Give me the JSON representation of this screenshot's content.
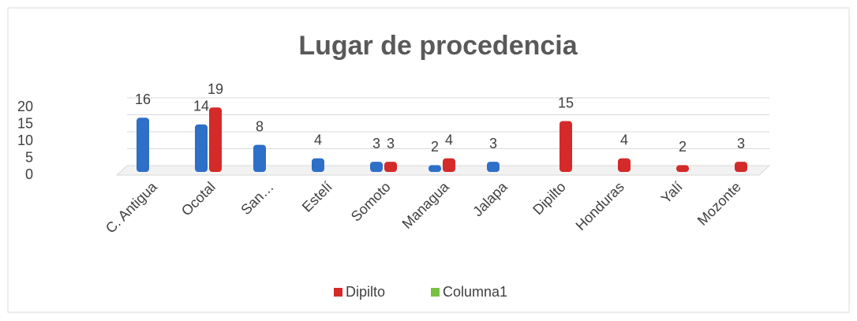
{
  "chart_data": {
    "type": "bar",
    "title": "Lugar de procedencia",
    "categories": [
      "C. Antigua",
      "Ocotal",
      "San…",
      "Estelí",
      "Somoto",
      "Managua",
      "Jalapa",
      "Dipilto",
      "Honduras",
      "Yalí",
      "Mozonte"
    ],
    "series": [
      {
        "color": "#2e6fc8",
        "values": [
          16,
          14,
          8,
          4,
          3,
          2,
          3,
          null,
          null,
          null,
          null
        ]
      },
      {
        "name": "Dipilto",
        "color": "#d42a2a",
        "values": [
          null,
          19,
          null,
          null,
          3,
          4,
          null,
          15,
          4,
          2,
          3
        ]
      },
      {
        "name": "Columna1",
        "color": "#7ac143",
        "values": [
          null,
          null,
          null,
          null,
          null,
          null,
          null,
          null,
          null,
          null,
          null
        ]
      }
    ],
    "ylim": [
      0,
      20
    ],
    "yticks": [
      0,
      5,
      10,
      15,
      20
    ],
    "grid": true,
    "legend": "bottom"
  }
}
